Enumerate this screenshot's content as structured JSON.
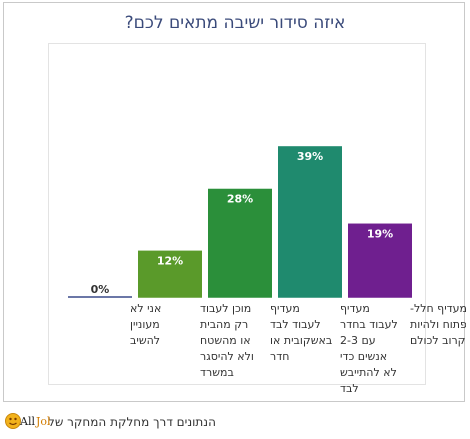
{
  "chart_data": {
    "type": "bar",
    "title": "איזה סידור ישיבה מתאים לכם?",
    "categories": [
      [
        "מעדיף חלל-",
        "פתוח ולהיות",
        "קרוב לכולם"
      ],
      [
        "מעדיף",
        "לעבוד בחדר",
        "עם 2-3",
        "אנשים כדי",
        "לא להתייבש",
        "לבד"
      ],
      [
        "מעדיף",
        "לעבוד לבד",
        "באשקובית או",
        "חדר"
      ],
      [
        "מוכן לעבוד",
        "רק מהבית",
        "או מהשטח",
        "ולא להיסגר",
        "במשרד"
      ],
      [
        "אני לא",
        "מעוניין",
        "להשיב"
      ]
    ],
    "values": [
      19,
      39,
      28,
      12,
      0
    ],
    "value_labels": [
      "19%",
      "39%",
      "28%",
      "12%",
      "0%"
    ],
    "colors": [
      "#6f1f8f",
      "#1f8a6e",
      "#2b8f3a",
      "#5a9a2a",
      "#3a4a8a"
    ],
    "ylim": [
      0,
      45
    ],
    "direction": "rtl",
    "grid": false,
    "legend": "none"
  },
  "footer": {
    "text": "הנתונים דרך מחלקת המחקר של",
    "logo_text": "AllJobs"
  }
}
